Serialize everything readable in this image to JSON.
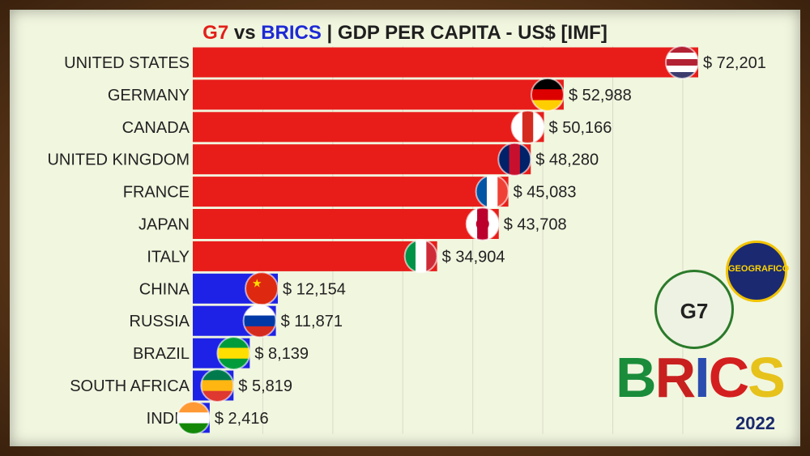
{
  "title": {
    "part1": "G7",
    "part2": " vs ",
    "part3": "BRICS",
    "part4": " | GDP PER CAPITA - US$ [IMF]"
  },
  "year": "2022",
  "logos": {
    "geo_text": "GEOGRAFICO",
    "g7_text": "G7",
    "brics_letters": [
      "B",
      "R",
      "I",
      "C",
      "S"
    ],
    "brics_colors": [
      "#1a8c3a",
      "#c8201f",
      "#2b4db0",
      "#d41f1f",
      "#e6c21a"
    ]
  },
  "colors": {
    "g7": "#e81d1a",
    "brics": "#1e22e6"
  },
  "chart_data": {
    "type": "bar",
    "orientation": "horizontal",
    "xlim": [
      0,
      72201
    ],
    "value_prefix": "$ ",
    "series": [
      {
        "name": "G7",
        "color": "#e81d1a"
      },
      {
        "name": "BRICS",
        "color": "#1e22e6"
      }
    ],
    "bars": [
      {
        "category": "UNITED STATES",
        "value": 72201,
        "label": "$ 72,201",
        "group": "G7",
        "flag": "us-flag-icon"
      },
      {
        "category": "GERMANY",
        "value": 52988,
        "label": "$ 52,988",
        "group": "G7",
        "flag": "germany-flag-icon"
      },
      {
        "category": "CANADA",
        "value": 50166,
        "label": "$ 50,166",
        "group": "G7",
        "flag": "canada-flag-icon"
      },
      {
        "category": "UNITED KINGDOM",
        "value": 48280,
        "label": "$ 48,280",
        "group": "G7",
        "flag": "uk-flag-icon"
      },
      {
        "category": "FRANCE",
        "value": 45083,
        "label": "$ 45,083",
        "group": "G7",
        "flag": "france-flag-icon"
      },
      {
        "category": "JAPAN",
        "value": 43708,
        "label": "$ 43,708",
        "group": "G7",
        "flag": "japan-flag-icon"
      },
      {
        "category": "ITALY",
        "value": 34904,
        "label": "$ 34,904",
        "group": "G7",
        "flag": "italy-flag-icon"
      },
      {
        "category": "CHINA",
        "value": 12154,
        "label": "$ 12,154",
        "group": "BRICS",
        "flag": "china-flag-icon"
      },
      {
        "category": "RUSSIA",
        "value": 11871,
        "label": "$ 11,871",
        "group": "BRICS",
        "flag": "russia-flag-icon"
      },
      {
        "category": "BRAZIL",
        "value": 8139,
        "label": "$ 8,139",
        "group": "BRICS",
        "flag": "brazil-flag-icon"
      },
      {
        "category": "SOUTH AFRICA",
        "value": 5819,
        "label": "$ 5,819",
        "group": "BRICS",
        "flag": "south-africa-flag-icon"
      },
      {
        "category": "INDIA",
        "value": 2416,
        "label": "$ 2,416",
        "group": "BRICS",
        "flag": "india-flag-icon"
      }
    ],
    "gridlines": [
      10000,
      20000,
      30000,
      40000,
      50000,
      60000,
      70000
    ]
  }
}
